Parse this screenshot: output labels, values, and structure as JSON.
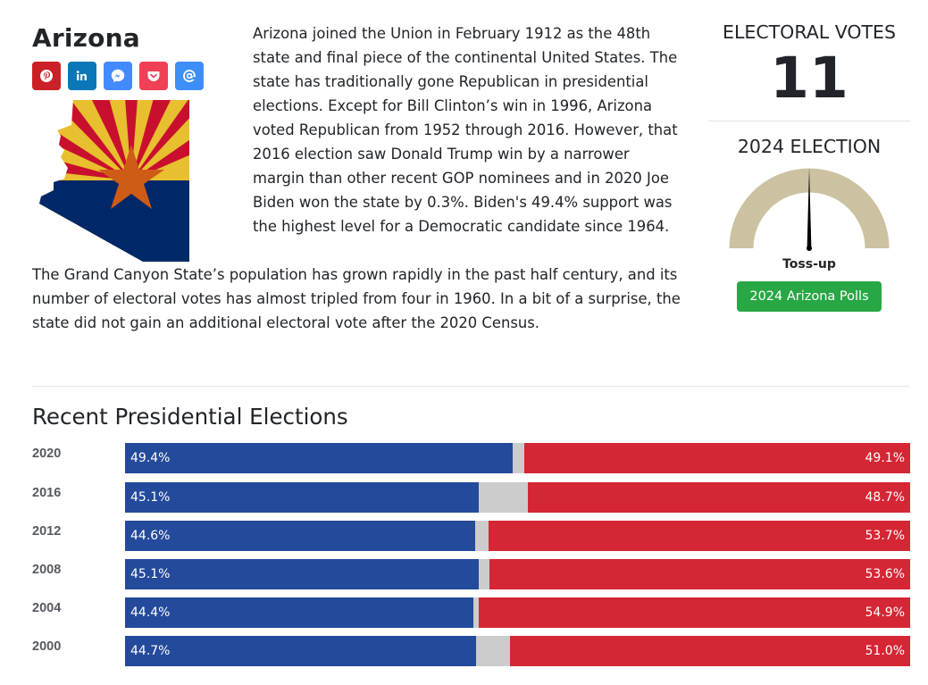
{
  "state": {
    "name": "Arizona"
  },
  "share_buttons": [
    {
      "icon": "pinterest-icon",
      "color": "#cb2027"
    },
    {
      "icon": "linkedin-icon",
      "color": "#0b77b7"
    },
    {
      "icon": "messenger-icon",
      "color": "#448aff"
    },
    {
      "icon": "pocket-icon",
      "color": "#ef4056"
    },
    {
      "icon": "email-icon",
      "color": "#3e8ef7"
    }
  ],
  "intro": {
    "paragraph_1": "Arizona joined the Union in February 1912 as the 48th state and final piece of the continental United States. The state has traditionally gone Republican in presidential elections. Except for Bill Clinton’s win in 1996, Arizona voted Republican from 1952 through 2016. However, that 2016 election saw Donald Trump win by a narrower margin than other recent GOP nominees and in 2020 Joe Biden won the state by 0.3%. Biden's 49.4% support was the highest level for a Democratic candidate since 1964.",
    "paragraph_2": "The Grand Canyon State’s population has grown rapidly in the past half century, and its number of electoral votes has almost tripled from four in 1960. In a bit of a surprise, the state did not gain an additional electoral vote after the 2020 Census."
  },
  "electoral": {
    "label": "ELECTORAL VOTES",
    "votes": "11"
  },
  "election_2024": {
    "label": "2024 ELECTION",
    "rating": "Toss-up",
    "gauge_value": 0.5,
    "gauge_color": "#ccc2a2",
    "polls_button": "2024 Arizona Polls"
  },
  "recent": {
    "title": "Recent Presidential Elections",
    "colors": {
      "dem": "#244a9b",
      "rep": "#d42634",
      "other": "#cccccc"
    },
    "rows": [
      {
        "year": "2020",
        "dem": 49.4,
        "rep": 49.1,
        "dem_label": "49.4%",
        "rep_label": "49.1%"
      },
      {
        "year": "2016",
        "dem": 45.1,
        "rep": 48.7,
        "dem_label": "45.1%",
        "rep_label": "48.7%"
      },
      {
        "year": "2012",
        "dem": 44.6,
        "rep": 53.7,
        "dem_label": "44.6%",
        "rep_label": "53.7%"
      },
      {
        "year": "2008",
        "dem": 45.1,
        "rep": 53.6,
        "dem_label": "45.1%",
        "rep_label": "53.6%"
      },
      {
        "year": "2004",
        "dem": 44.4,
        "rep": 54.9,
        "dem_label": "44.4%",
        "rep_label": "54.9%"
      },
      {
        "year": "2000",
        "dem": 44.7,
        "rep": 51.0,
        "dem_label": "44.7%",
        "rep_label": "51.0%"
      }
    ]
  }
}
